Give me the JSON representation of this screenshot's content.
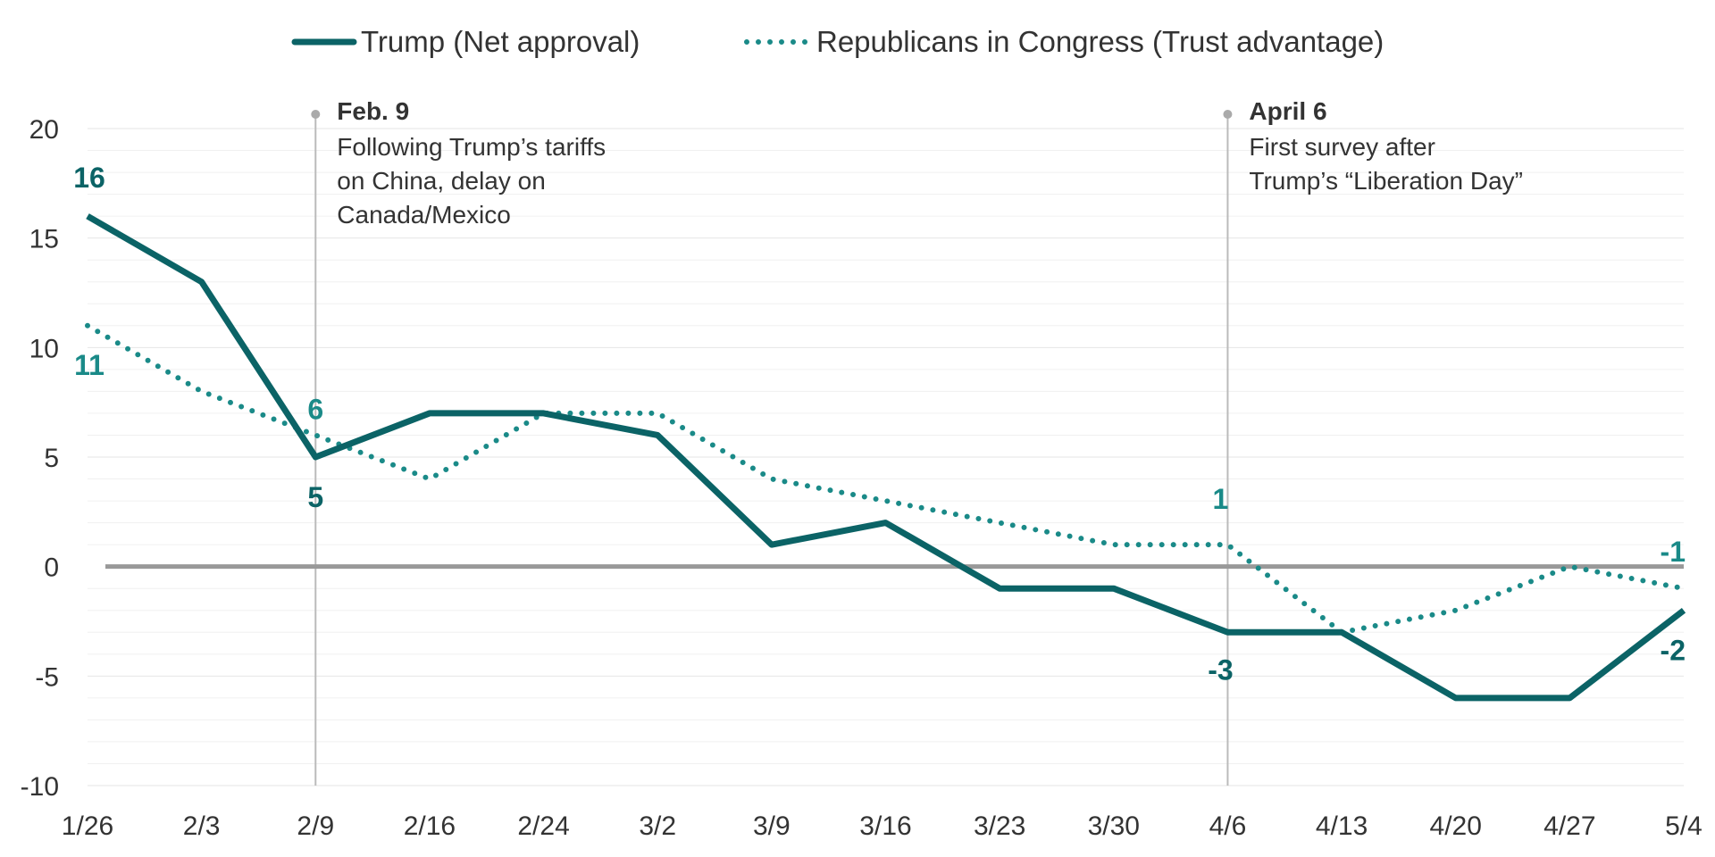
{
  "chart_data": {
    "type": "line",
    "categories": [
      "1/26",
      "2/3",
      "2/9",
      "2/16",
      "2/24",
      "3/2",
      "3/9",
      "3/16",
      "3/23",
      "3/30",
      "4/6",
      "4/13",
      "4/20",
      "4/27",
      "5/4"
    ],
    "series": [
      {
        "name": "Trump (Net approval)",
        "values": [
          16,
          13,
          5,
          7,
          7,
          6,
          1,
          2,
          -1,
          -1,
          -3,
          -3,
          -6,
          -6,
          -2
        ],
        "color": "#0b6366",
        "style": "solid"
      },
      {
        "name": "Republicans in Congress (Trust advantage)",
        "values": [
          11,
          8,
          6,
          4,
          7,
          7,
          4,
          3,
          2,
          1,
          1,
          -3,
          -2,
          0,
          -1
        ],
        "color": "#1a8a88",
        "style": "dotted"
      }
    ],
    "y_ticks": [
      "20",
      "15",
      "10",
      "5",
      "0",
      "-5",
      "-10"
    ],
    "ylim": [
      -10,
      20
    ],
    "zero_line": true,
    "grid": true,
    "legend_position": "top-center",
    "data_labels": [
      {
        "series": 0,
        "index": 0,
        "text": "16"
      },
      {
        "series": 1,
        "index": 0,
        "text": "11"
      },
      {
        "series": 1,
        "index": 2,
        "text": "6"
      },
      {
        "series": 0,
        "index": 2,
        "text": "5"
      },
      {
        "series": 1,
        "index": 10,
        "text": "1"
      },
      {
        "series": 0,
        "index": 10,
        "text": "-3"
      },
      {
        "series": 1,
        "index": 14,
        "text": "-1"
      },
      {
        "series": 0,
        "index": 14,
        "text": "-2"
      }
    ],
    "annotations": [
      {
        "index": 2,
        "title": "Feb. 9",
        "lines": [
          "Following Trump’s tariffs",
          "on China, delay on",
          "Canada/Mexico"
        ]
      },
      {
        "index": 10,
        "title": "April 6",
        "lines": [
          "First survey after",
          "Trump’s “Liberation Day”"
        ]
      }
    ]
  }
}
